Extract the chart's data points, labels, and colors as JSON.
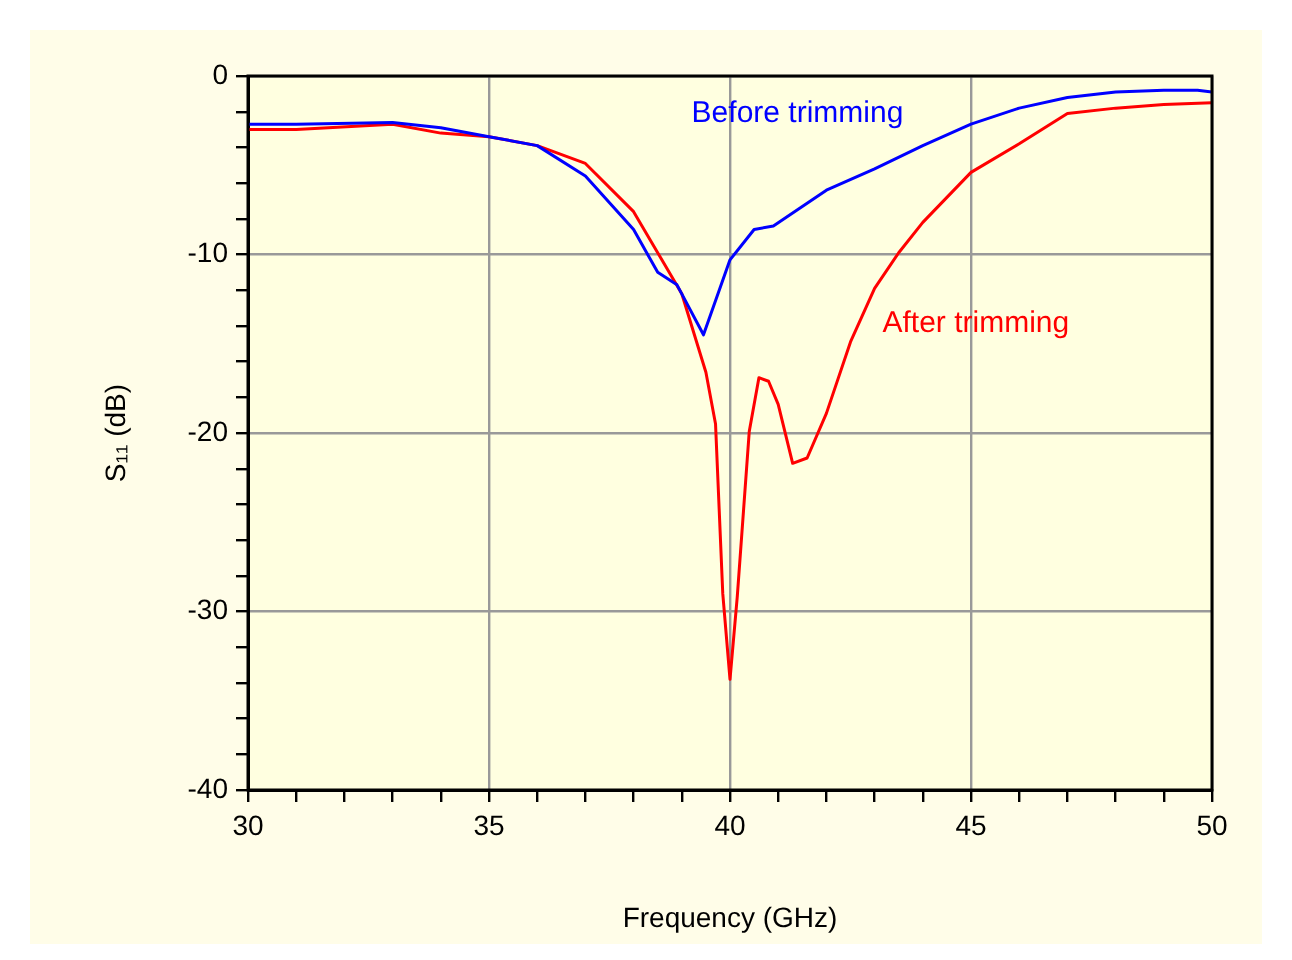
{
  "chart_data": {
    "type": "line",
    "xlabel": "Frequency (GHz)",
    "ylabel": "S₁₁ (dB)",
    "xlim": [
      30,
      50
    ],
    "xticks": [
      30,
      {
        "value": 31,
        "label": null
      },
      {
        "value": 32,
        "label": null
      },
      {
        "value": 33,
        "label": null
      },
      {
        "value": 34,
        "label": null
      },
      35,
      {
        "value": 36,
        "label": null
      },
      {
        "value": 37,
        "label": null
      },
      {
        "value": 38,
        "label": null
      },
      {
        "value": 39,
        "label": null
      },
      40,
      {
        "value": 41,
        "label": null
      },
      {
        "value": 42,
        "label": null
      },
      {
        "value": 43,
        "label": null
      },
      {
        "value": 44,
        "label": null
      },
      45,
      {
        "value": 46,
        "label": null
      },
      {
        "value": 47,
        "label": null
      },
      {
        "value": 48,
        "label": null
      },
      {
        "value": 49,
        "label": null
      },
      50
    ],
    "ylim": [
      -40,
      0
    ],
    "yticks": [
      -40,
      {
        "value": -38,
        "label": null
      },
      {
        "value": -36,
        "label": null
      },
      {
        "value": -34,
        "label": null
      },
      {
        "value": -32,
        "label": null
      },
      -30,
      {
        "value": -28,
        "label": null
      },
      {
        "value": -26,
        "label": null
      },
      {
        "value": -24,
        "label": null
      },
      {
        "value": -22,
        "label": null
      },
      -20,
      {
        "value": -18,
        "label": null
      },
      {
        "value": -16,
        "label": null
      },
      {
        "value": -14,
        "label": null
      },
      {
        "value": -12,
        "label": null
      },
      -10,
      {
        "value": -8,
        "label": null
      },
      {
        "value": -6,
        "label": null
      },
      {
        "value": -4,
        "label": null
      },
      {
        "value": -2,
        "label": null
      },
      0
    ],
    "grid": true,
    "legend": false,
    "marker": "none",
    "line_style": "solid",
    "series": [
      {
        "name": "Before trimming",
        "color": "#0000ff",
        "x": [
          30,
          31,
          33,
          34,
          35,
          36,
          37,
          38,
          38.5,
          38.9,
          39.45,
          40,
          40.5,
          40.9,
          42,
          43,
          44,
          45,
          46,
          47,
          48,
          49,
          49.7,
          50
        ],
        "values": [
          -2.7,
          -2.7,
          -2.6,
          -2.9,
          -3.4,
          -3.9,
          -5.6,
          -8.6,
          -11,
          -11.7,
          -14.5,
          -10.3,
          -8.6,
          -8.4,
          -6.4,
          -5.2,
          -3.9,
          -2.7,
          -1.8,
          -1.2,
          -0.9,
          -0.8,
          -0.8,
          -0.9
        ]
      },
      {
        "name": "After trimming",
        "color": "#ff0000",
        "x": [
          30,
          31,
          33,
          34,
          35,
          36,
          37,
          38,
          38.5,
          39,
          39.5,
          39.7,
          39.85,
          40,
          40.15,
          40.4,
          40.6,
          40.8,
          41,
          41.3,
          41.6,
          42,
          42.5,
          43,
          43.5,
          44,
          45,
          46,
          47,
          48,
          49,
          50
        ],
        "values": [
          -3,
          -3,
          -2.7,
          -3.2,
          -3.4,
          -3.9,
          -4.9,
          -7.6,
          -9.9,
          -12.2,
          -16.6,
          -19.5,
          -29,
          -33.8,
          -29.2,
          -19.9,
          -16.9,
          -17.1,
          -18.4,
          -21.7,
          -21.4,
          -18.9,
          -14.9,
          -11.9,
          -9.9,
          -8.2,
          -5.4,
          -3.8,
          -2.1,
          -1.8,
          -1.6,
          -1.5
        ]
      }
    ]
  }
}
